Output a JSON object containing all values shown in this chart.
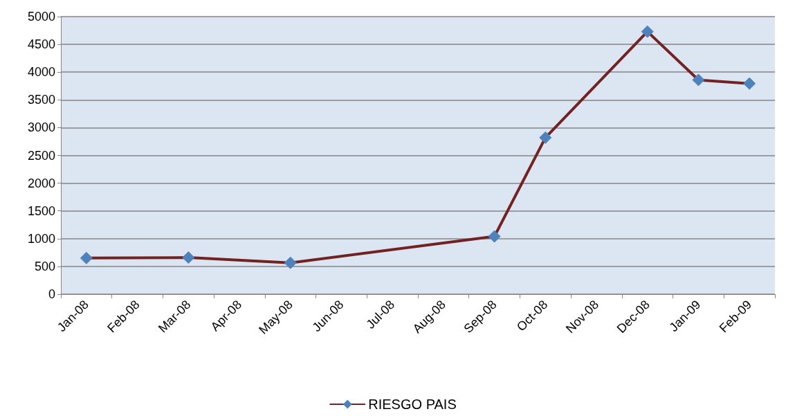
{
  "chart_data": {
    "type": "line",
    "categories": [
      "Jan-08",
      "Feb-08",
      "Mar-08",
      "Apr-08",
      "May-08",
      "Jun-08",
      "Jul-08",
      "Aug-08",
      "Sep-08",
      "Oct-08",
      "Nov-08",
      "Dec-08",
      "Jan-09",
      "Feb-09"
    ],
    "series": [
      {
        "name": "RIESGO PAIS",
        "color": "#722222",
        "values": [
          650,
          null,
          660,
          null,
          565,
          null,
          null,
          null,
          1040,
          2820,
          null,
          4730,
          3860,
          3795
        ]
      }
    ],
    "ylim": [
      0,
      5000
    ],
    "yticks": [
      0,
      500,
      1000,
      1500,
      2000,
      2500,
      3000,
      3500,
      4000,
      4500,
      5000
    ],
    "grid": "y",
    "legend": "bottom",
    "marker": "diamond",
    "line_style": "solid"
  }
}
